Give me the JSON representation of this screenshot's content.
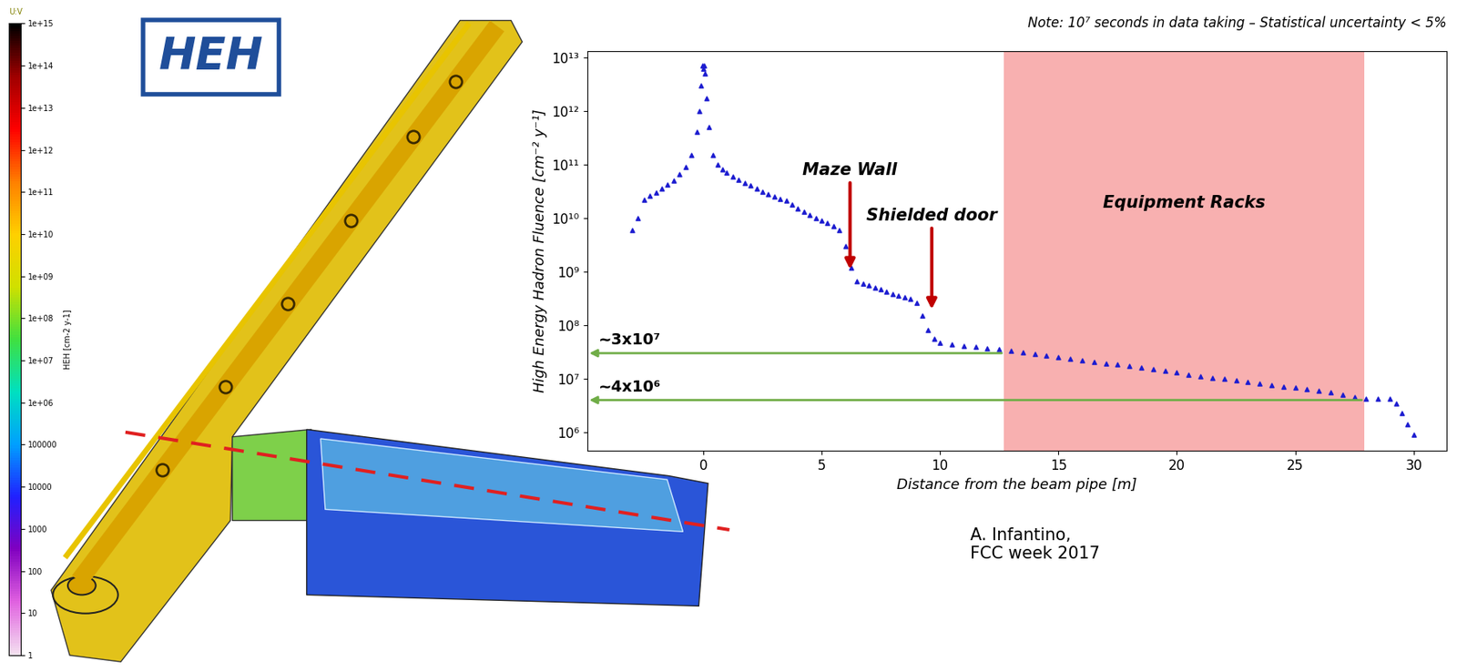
{
  "logo": "HEH",
  "credit": "A. Infantino,\nFCC week 2017",
  "chart_data": [
    {
      "type": "colorbar",
      "title": "U:V",
      "ylabel": "HEH [cm-2 y-1]",
      "log": "y",
      "ylim": [
        1,
        1000000000000000.0
      ],
      "yticks": [
        {
          "value": 1000000000000000.0,
          "label": "1e+15"
        },
        {
          "value": 100000000000000.0,
          "label": "1e+14"
        },
        {
          "value": 10000000000000.0,
          "label": "1e+13"
        },
        {
          "value": 1000000000000.0,
          "label": "1e+12"
        },
        {
          "value": 100000000000.0,
          "label": "1e+11"
        },
        {
          "value": 10000000000.0,
          "label": "1e+10"
        },
        {
          "value": 1000000000.0,
          "label": "1e+09"
        },
        {
          "value": 100000000.0,
          "label": "1e+08"
        },
        {
          "value": 10000000.0,
          "label": "1e+07"
        },
        {
          "value": 1000000.0,
          "label": "1e+06"
        },
        100000,
        10000,
        1000,
        100,
        10,
        1
      ]
    },
    {
      "type": "scatter",
      "subtitle": "Note: 10⁷ seconds in data taking – Statistical uncertainty < 5%",
      "xlabel": "Distance from the beam pipe [m]",
      "ylabel": "High Energy Hadron Fluence [cm⁻² y⁻¹]",
      "log": "y",
      "color": "#1c1cd0",
      "marker": "triangle",
      "xlim": [
        -4.9,
        31.4
      ],
      "ylim": [
        450000,
        13000000000000.0
      ],
      "xticks": [
        0,
        5,
        10,
        15,
        20,
        25,
        30
      ],
      "yticks": [
        {
          "value": 1000000.0,
          "label": "10⁶"
        },
        {
          "value": 10000000.0,
          "label": "10⁷"
        },
        {
          "value": 100000000.0,
          "label": "10⁸"
        },
        {
          "value": 1000000000.0,
          "label": "10⁹"
        },
        {
          "value": 10000000000.0,
          "label": "10¹⁰"
        },
        {
          "value": 100000000000.0,
          "label": "10¹¹"
        },
        {
          "value": 1000000000000.0,
          "label": "10¹²"
        },
        {
          "value": 10000000000000.0,
          "label": "10¹³"
        }
      ],
      "x": [
        -3,
        -2.75,
        -2.5,
        -2.25,
        -2,
        -1.75,
        -1.5,
        -1.25,
        -1,
        -0.75,
        -0.5,
        -0.25,
        -0.15,
        -0.08,
        -0.03,
        0,
        0.03,
        0.08,
        0.15,
        0.25,
        0.4,
        0.6,
        0.8,
        1,
        1.25,
        1.5,
        1.75,
        2,
        2.25,
        2.5,
        2.75,
        3,
        3.25,
        3.5,
        3.75,
        4,
        4.25,
        4.5,
        4.75,
        5,
        5.25,
        5.5,
        5.75,
        6,
        6.25,
        6.5,
        6.75,
        7,
        7.25,
        7.5,
        7.75,
        8,
        8.25,
        8.5,
        8.75,
        9,
        9.25,
        9.5,
        9.75,
        10,
        10.5,
        11,
        11.5,
        12,
        12.5,
        13,
        13.5,
        14,
        14.5,
        15,
        15.5,
        16,
        16.5,
        17,
        17.5,
        18,
        18.5,
        19,
        19.5,
        20,
        20.5,
        21,
        21.5,
        22,
        22.5,
        23,
        23.5,
        24,
        24.5,
        25,
        25.5,
        26,
        26.5,
        27,
        27.5,
        28,
        28.5,
        29,
        29.25,
        29.5,
        29.75,
        30
      ],
      "values": [
        6000000000.0,
        10000000000.0,
        22000000000.0,
        26000000000.0,
        30000000000.0,
        35000000000.0,
        42000000000.0,
        50000000000.0,
        65000000000.0,
        90000000000.0,
        150000000000.0,
        400000000000.0,
        1000000000000.0,
        3000000000000.0,
        7000000000000.0,
        6000000000000.0,
        7000000000000.0,
        5000000000000.0,
        1700000000000.0,
        500000000000.0,
        150000000000.0,
        100000000000.0,
        80000000000.0,
        70000000000.0,
        60000000000.0,
        52000000000.0,
        45000000000.0,
        40000000000.0,
        35000000000.0,
        31000000000.0,
        28000000000.0,
        25000000000.0,
        23000000000.0,
        21000000000.0,
        18000000000.0,
        15000000000.0,
        13000000000.0,
        11500000000.0,
        10000000000.0,
        9000000000.0,
        8000000000.0,
        7000000000.0,
        6000000000.0,
        3000000000.0,
        1200000000.0,
        650000000.0,
        600000000.0,
        550000000.0,
        500000000.0,
        460000000.0,
        420000000.0,
        380000000.0,
        350000000.0,
        330000000.0,
        310000000.0,
        260000000.0,
        150000000.0,
        80000000.0,
        55000000.0,
        47000000.0,
        44000000.0,
        41000000.0,
        39000000.0,
        37000000.0,
        35000000.0,
        33000000.0,
        31000000.0,
        29000000.0,
        27000000.0,
        25000000.0,
        23500000.0,
        22000000.0,
        20500000.0,
        19000000.0,
        18500000.0,
        17500000.0,
        16000000.0,
        15000000.0,
        14000000.0,
        13000000.0,
        12000000.0,
        11000000.0,
        10500000.0,
        10000000.0,
        9300000.0,
        8700000.0,
        8200000.0,
        7700000.0,
        7200000.0,
        6800000.0,
        6300000.0,
        6000000.0,
        5600000.0,
        5100000.0,
        4600000.0,
        4200000.0,
        4200000.0,
        4300000.0,
        3500000.0,
        2300000.0,
        1400000.0,
        900000.0
      ],
      "annotations": [
        {
          "text": "Maze Wall",
          "x": 6.2,
          "y": 1000000000.0
        },
        {
          "text": "Shielded door",
          "x": 9.65,
          "y": 180000000.0
        }
      ],
      "span": {
        "label": "Equipment Racks",
        "x0": 12.7,
        "x1": 27.9
      },
      "levels": [
        {
          "label": "~3x10⁷",
          "value": 30000000,
          "x_to": 12.7
        },
        {
          "label": "~4x10⁶",
          "value": 4000000,
          "x_to": 27.9
        }
      ]
    }
  ]
}
